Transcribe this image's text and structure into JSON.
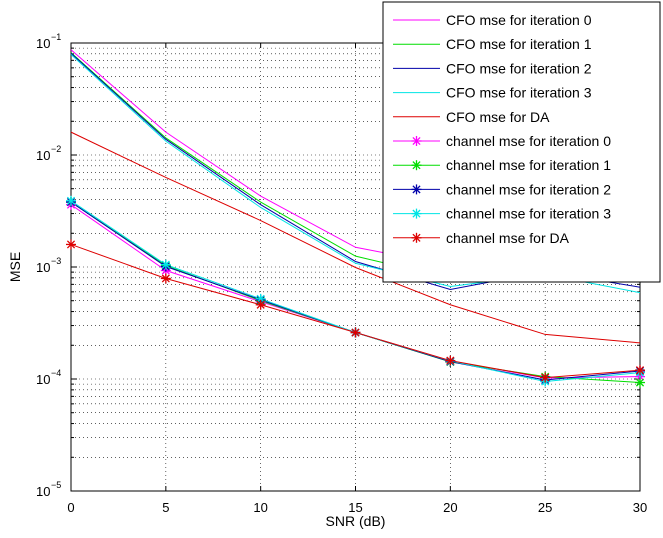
{
  "chart_data": {
    "type": "line",
    "xlabel": "SNR (dB)",
    "ylabel": "MSE",
    "x": [
      0,
      5,
      10,
      15,
      20,
      25,
      30
    ],
    "xlim": [
      0,
      30
    ],
    "ylim": [
      1e-05,
      0.1
    ],
    "yscale": "log",
    "grid": true,
    "legend_position": "top-right",
    "x_ticks": [
      "0",
      "5",
      "10",
      "15",
      "20",
      "25",
      "30"
    ],
    "y_ticks": [
      {
        "base": "10",
        "exp": "−5"
      },
      {
        "base": "10",
        "exp": "−4"
      },
      {
        "base": "10",
        "exp": "−3"
      },
      {
        "base": "10",
        "exp": "−2"
      },
      {
        "base": "10",
        "exp": "−1"
      }
    ],
    "series": [
      {
        "name": "CFO mse for iteration 0",
        "color": "#ff00ff",
        "marker": "none",
        "values": [
          0.087,
          0.016,
          0.0043,
          0.0015,
          0.00103,
          0.00106,
          0.00085
        ]
      },
      {
        "name": "CFO mse for iteration 1",
        "color": "#00dd00",
        "marker": "none",
        "values": [
          0.082,
          0.0142,
          0.0038,
          0.00125,
          0.00079,
          0.00095,
          0.00082
        ]
      },
      {
        "name": "CFO mse for iteration 2",
        "color": "#0000aa",
        "marker": "none",
        "values": [
          0.081,
          0.0138,
          0.0036,
          0.00112,
          0.00063,
          0.00091,
          0.00066
        ]
      },
      {
        "name": "CFO mse for iteration 3",
        "color": "#00e5e5",
        "marker": "none",
        "values": [
          0.079,
          0.0133,
          0.0034,
          0.00108,
          0.00067,
          0.00086,
          0.00059
        ]
      },
      {
        "name": "CFO mse for DA",
        "color": "#dd0000",
        "marker": "none",
        "values": [
          0.016,
          0.0063,
          0.0026,
          0.00099,
          0.00046,
          0.00025,
          0.00021
        ]
      },
      {
        "name": "channel mse for iteration 0",
        "color": "#ff00ff",
        "marker": "star",
        "values": [
          0.0036,
          0.00093,
          0.00049,
          0.00026,
          0.000145,
          0.000102,
          0.000105
        ]
      },
      {
        "name": "channel mse for iteration 1",
        "color": "#00dd00",
        "marker": "star",
        "values": [
          0.0038,
          0.00103,
          0.0005,
          0.00026,
          0.000142,
          0.000105,
          9.3e-05
        ]
      },
      {
        "name": "channel mse for iteration 2",
        "color": "#0000aa",
        "marker": "star",
        "values": [
          0.0038,
          0.00101,
          0.00051,
          0.00026,
          0.000143,
          9.8e-05,
          0.000118
        ]
      },
      {
        "name": "channel mse for iteration 3",
        "color": "#00e5e5",
        "marker": "star",
        "values": [
          0.0039,
          0.00105,
          0.00052,
          0.00026,
          0.000145,
          9.5e-05,
          0.000114
        ]
      },
      {
        "name": "channel mse for DA",
        "color": "#dd0000",
        "marker": "star",
        "values": [
          0.00159,
          0.00079,
          0.00046,
          0.00026,
          0.000146,
          0.000103,
          0.00012
        ]
      }
    ]
  }
}
